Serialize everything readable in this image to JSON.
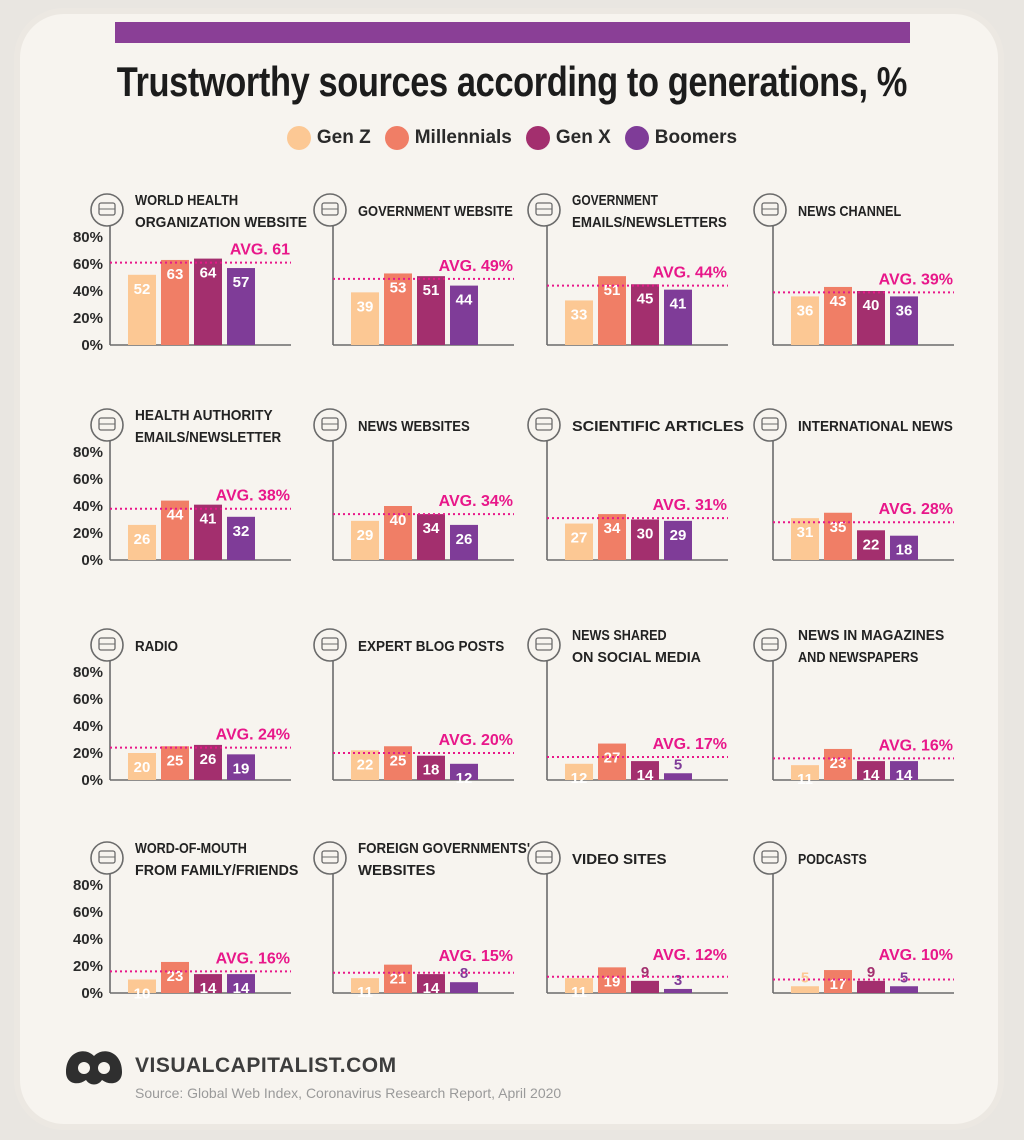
{
  "title": "Trustworthy sources according to generations, %",
  "legend": [
    {
      "label": "Gen Z",
      "color": "#fcc894"
    },
    {
      "label": "Millennials",
      "color": "#f07e66"
    },
    {
      "label": "Gen X",
      "color": "#a32f6e"
    },
    {
      "label": "Boomers",
      "color": "#7f3c98"
    }
  ],
  "avg_color": "#e8178a",
  "footer": {
    "brand": "VISUALCAPITALIST.COM",
    "source": "Source: Global Web Index, Coronavirus Research Report, April 2020"
  },
  "chart_data": {
    "type": "bar",
    "ylim": [
      0,
      80
    ],
    "yticks": [
      "80%",
      "60%",
      "40%",
      "20%",
      "0%"
    ],
    "series_names": [
      "Gen Z",
      "Millennials",
      "Gen X",
      "Boomers"
    ],
    "panels": [
      {
        "title": [
          "WORLD HEALTH",
          "ORGANIZATION WEBSITE"
        ],
        "icon": "globe-icon",
        "values": [
          52,
          63,
          64,
          57
        ],
        "avg": 61,
        "avg_label": "AVG. 61"
      },
      {
        "title": [
          "GOVERNMENT WEBSITE"
        ],
        "icon": "government-building-icon",
        "values": [
          39,
          53,
          51,
          44
        ],
        "avg": 49,
        "avg_label": "AVG. 49%"
      },
      {
        "title": [
          "GOVERNMENT",
          "EMAILS/NEWSLETTERS"
        ],
        "icon": "email-icon",
        "values": [
          33,
          51,
          45,
          41
        ],
        "avg": 44,
        "avg_label": "AVG. 44%"
      },
      {
        "title": [
          "NEWS CHANNEL"
        ],
        "icon": "satellite-globe-icon",
        "values": [
          36,
          43,
          40,
          36
        ],
        "avg": 39,
        "avg_label": "AVG. 39%"
      },
      {
        "title": [
          "HEALTH AUTHORITY",
          "EMAILS/NEWSLETTER"
        ],
        "icon": "envelope-icon",
        "values": [
          26,
          44,
          41,
          32
        ],
        "avg": 38,
        "avg_label": "AVG. 38%"
      },
      {
        "title": [
          "NEWS WEBSITES"
        ],
        "icon": "browser-icon",
        "values": [
          29,
          40,
          34,
          26
        ],
        "avg": 34,
        "avg_label": "AVG. 34%"
      },
      {
        "title": [
          "SCIENTIFIC  ARTICLES"
        ],
        "icon": "book-icon",
        "values": [
          27,
          34,
          30,
          29
        ],
        "avg": 31,
        "avg_label": "AVG. 31%"
      },
      {
        "title": [
          "INTERNATIONAL NEWS"
        ],
        "icon": "world-news-icon",
        "values": [
          31,
          35,
          22,
          18
        ],
        "avg": 28,
        "avg_label": "AVG. 28%"
      },
      {
        "title": [
          "RADIO"
        ],
        "icon": "radio-tower-icon",
        "values": [
          20,
          25,
          26,
          19
        ],
        "avg": 24,
        "avg_label": "AVG. 24%"
      },
      {
        "title": [
          "EXPERT BLOG POSTS"
        ],
        "icon": "laptop-blog-icon",
        "values": [
          22,
          25,
          18,
          12
        ],
        "avg": 20,
        "avg_label": "AVG. 20%"
      },
      {
        "title": [
          "NEWS SHARED",
          "ON SOCIAL MEDIA"
        ],
        "icon": "smartphone-icon",
        "values": [
          12,
          27,
          14,
          5
        ],
        "avg": 17,
        "avg_label": "AVG. 17%"
      },
      {
        "title": [
          "NEWS IN MAGAZINES",
          "AND NEWSPAPERS"
        ],
        "icon": "magazine-icon",
        "values": [
          11,
          23,
          14,
          14
        ],
        "avg": 16,
        "avg_label": "AVG. 16%"
      },
      {
        "title": [
          "WORD-OF-MOUTH",
          "FROM FAMILY/FRIENDS"
        ],
        "icon": "people-talking-icon",
        "values": [
          10,
          23,
          14,
          14
        ],
        "avg": 16,
        "avg_label": "AVG. 16%"
      },
      {
        "title": [
          "FOREIGN GOVERNMENTS'",
          " WEBSITES"
        ],
        "icon": "globe-laurel-icon",
        "values": [
          11,
          21,
          14,
          8
        ],
        "avg": 15,
        "avg_label": "AVG. 15%"
      },
      {
        "title": [
          "VIDEO SITES"
        ],
        "icon": "video-monitor-icon",
        "values": [
          11,
          19,
          9,
          3
        ],
        "avg": 12,
        "avg_label": "AVG. 12%"
      },
      {
        "title": [
          "PODCASTS"
        ],
        "icon": "speech-bubble-icon",
        "values": [
          5,
          17,
          9,
          5
        ],
        "avg": 10,
        "avg_label": "AVG. 10%"
      }
    ]
  }
}
